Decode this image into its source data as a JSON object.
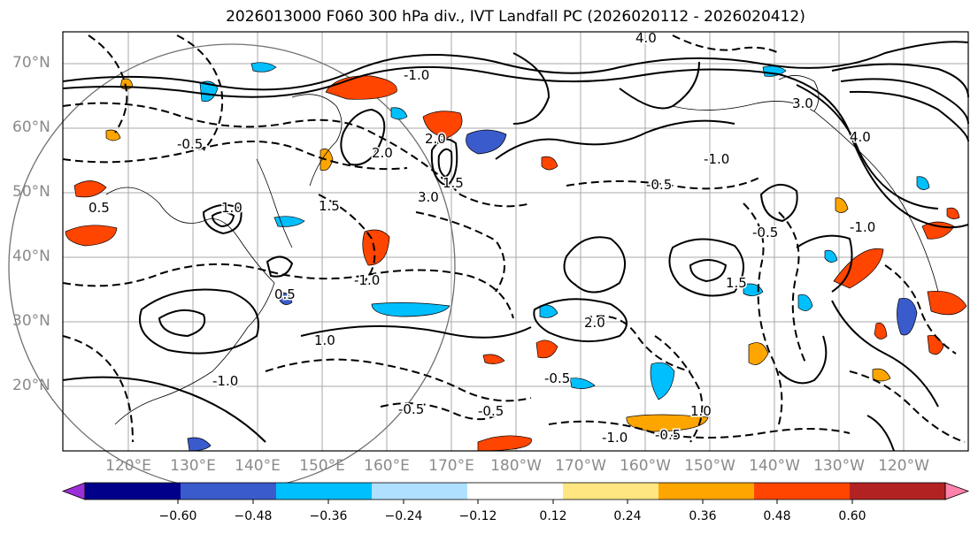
{
  "title": "2026013000 F060 300 hPa div., IVT Landfall PC (2026020112 - 2026020412)",
  "lat_labels": [
    "70°N",
    "60°N",
    "50°N",
    "40°N",
    "30°N",
    "20°N"
  ],
  "lon_labels": [
    "120°E",
    "130°E",
    "140°E",
    "150°E",
    "160°E",
    "170°E",
    "180°W",
    "170°W",
    "160°W",
    "150°W",
    "140°W",
    "130°W",
    "120°W"
  ],
  "colorbar": {
    "tick_labels": [
      "−0.60",
      "−0.48",
      "−0.36",
      "−0.24",
      "−0.12",
      "0.12",
      "0.24",
      "0.36",
      "0.48",
      "0.60"
    ],
    "colors": [
      "#9b30d9",
      "#00008b",
      "#3a5bcc",
      "#00bfff",
      "#b0e0ff",
      "#ffffff",
      "#ffe680",
      "#ffa500",
      "#ff4500",
      "#b22222",
      "#ff82ab"
    ]
  },
  "contour_labels": [
    "-1.0",
    "-0.5",
    "1.0",
    "1.5",
    "2.0",
    "3.0",
    "4.0",
    "-0.5",
    "1.5",
    "-0.5",
    "-1.0",
    "-0.5",
    "-0.5",
    "1.0",
    "-1.0",
    "0.5",
    "2.0",
    "1.5",
    "1.0",
    "-0.5",
    "-1.0",
    "-1.0",
    "3.0",
    "4.0",
    "-0.5",
    "0.5",
    "-1.0",
    "2.0"
  ],
  "colors": {
    "grid": "#a0a0a0",
    "contour": "#000000",
    "axis_label": "#8a8a8a"
  }
}
